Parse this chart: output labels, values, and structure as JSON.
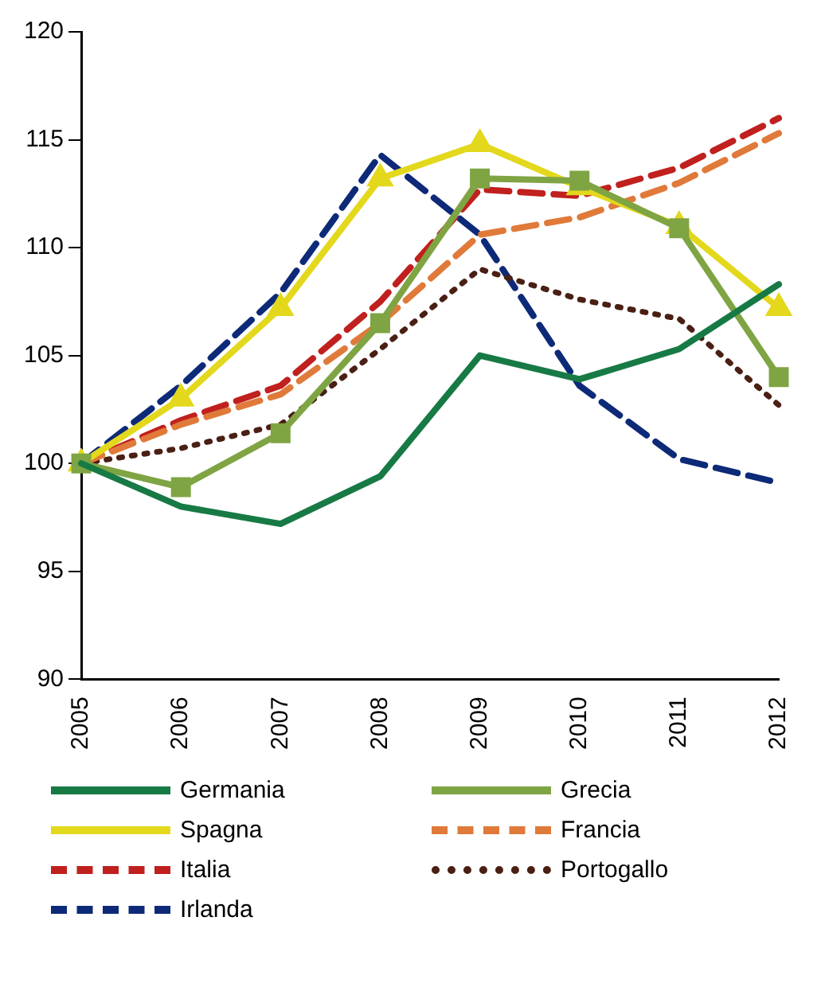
{
  "chart_data": {
    "type": "line",
    "categories": [
      "2005",
      "2006",
      "2007",
      "2008",
      "2009",
      "2010",
      "2011",
      "2012"
    ],
    "series": [
      {
        "name": "Germania",
        "color": "#177a45",
        "values": [
          100,
          98,
          97.2,
          99.4,
          105,
          103.9,
          105.3,
          108.3
        ],
        "line_style": "solid",
        "marker": "none"
      },
      {
        "name": "Grecia",
        "color": "#7fa443",
        "values": [
          100,
          98.9,
          101.4,
          106.5,
          113.2,
          113.1,
          110.9,
          104
        ],
        "line_style": "solid",
        "marker": "square"
      },
      {
        "name": "Spagna",
        "color": "#e3d81c",
        "values": [
          100,
          103,
          107.2,
          113.2,
          114.8,
          112.8,
          111,
          107.2
        ],
        "line_style": "solid",
        "marker": "triangle"
      },
      {
        "name": "Francia",
        "color": "#e07a3a",
        "values": [
          100,
          101.8,
          103.2,
          106.5,
          110.6,
          111.4,
          113,
          115.3
        ],
        "line_style": "dashed",
        "marker": "none"
      },
      {
        "name": "Italia",
        "color": "#c0201e",
        "values": [
          100,
          102,
          103.6,
          107.5,
          112.7,
          112.4,
          113.7,
          116
        ],
        "line_style": "dashed",
        "marker": "none"
      },
      {
        "name": "Portogallo",
        "color": "#4a1f14",
        "values": [
          100,
          100.7,
          101.8,
          105.3,
          109,
          107.6,
          106.7,
          102.7
        ],
        "line_style": "dotted",
        "marker": "none"
      },
      {
        "name": "Irlanda",
        "color": "#0d2a78",
        "values": [
          100,
          103.6,
          107.9,
          114.3,
          110.6,
          103.6,
          100.2,
          99.1
        ],
        "line_style": "dashed",
        "marker": "none"
      }
    ],
    "ylim": [
      90,
      120
    ],
    "yticks": [
      90,
      95,
      100,
      105,
      110,
      115,
      120
    ],
    "grid": false,
    "legend": "bottom"
  }
}
